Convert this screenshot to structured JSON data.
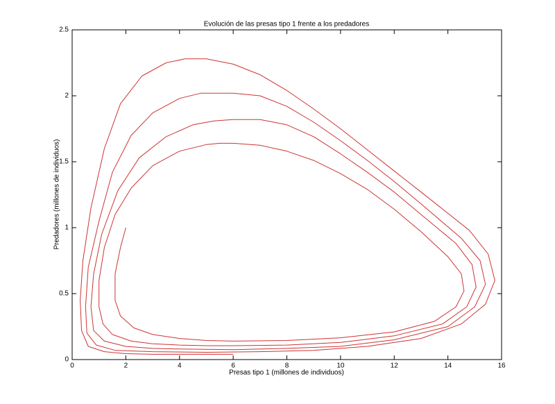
{
  "chart_data": {
    "type": "line",
    "title": "Evolución de las presas tipo 1 frente a los predadores",
    "xlabel": "Presas tipo 1 (millones de individuos)",
    "ylabel": "Predadores (millones de individuos)",
    "color": "#cc3333",
    "x": [
      2,
      1.8,
      1.6,
      1.6,
      1.8,
      2.3,
      3,
      4,
      5,
      6,
      8,
      10,
      12,
      13.5,
      14.3,
      14.6,
      14.5,
      14,
      13,
      12,
      11,
      10,
      9,
      8,
      7,
      6,
      5.5,
      5,
      4,
      3,
      2.2,
      1.6,
      1.2,
      1,
      1,
      1.15,
      1.5,
      2.2,
      3,
      4,
      5,
      6,
      8,
      10,
      12,
      13.8,
      14.7,
      15.05,
      14.9,
      14.3,
      13,
      12,
      11,
      10,
      9,
      8,
      7,
      6,
      5.3,
      4.5,
      3.5,
      2.5,
      1.7,
      1.1,
      0.8,
      0.7,
      0.8,
      1.2,
      2,
      3,
      4,
      6,
      8,
      10,
      12,
      14,
      15,
      15.4,
      15.2,
      14.5,
      13,
      12,
      11,
      10,
      9,
      8,
      7,
      6,
      4.8,
      4,
      3,
      2.2,
      1.5,
      1,
      0.6,
      0.5,
      0.55,
      0.9,
      1.6,
      3,
      5,
      7,
      9,
      11,
      13,
      14.5,
      15.4,
      15.75,
      15.5,
      14.8,
      13,
      12,
      11,
      10,
      9,
      8,
      7,
      6,
      5,
      4.2,
      3.5,
      2.6,
      1.8,
      1.2,
      0.7,
      0.4,
      0.3,
      0.35,
      0.6,
      1.2,
      2,
      3,
      4,
      5,
      6
    ],
    "values": [
      1,
      0.85,
      0.65,
      0.45,
      0.33,
      0.24,
      0.19,
      0.16,
      0.145,
      0.14,
      0.145,
      0.165,
      0.21,
      0.29,
      0.4,
      0.52,
      0.65,
      0.78,
      0.97,
      1.14,
      1.29,
      1.41,
      1.51,
      1.58,
      1.625,
      1.64,
      1.64,
      1.63,
      1.58,
      1.47,
      1.3,
      1.1,
      0.85,
      0.6,
      0.4,
      0.27,
      0.19,
      0.14,
      0.12,
      0.11,
      0.105,
      0.105,
      0.11,
      0.13,
      0.18,
      0.27,
      0.4,
      0.55,
      0.72,
      0.88,
      1.1,
      1.27,
      1.42,
      1.56,
      1.69,
      1.78,
      1.82,
      1.82,
      1.81,
      1.78,
      1.69,
      1.53,
      1.28,
      0.95,
      0.65,
      0.4,
      0.22,
      0.14,
      0.1,
      0.085,
      0.08,
      0.075,
      0.085,
      0.1,
      0.15,
      0.25,
      0.4,
      0.57,
      0.75,
      0.92,
      1.18,
      1.35,
      1.51,
      1.66,
      1.8,
      1.92,
      2,
      2.02,
      2.02,
      1.98,
      1.87,
      1.7,
      1.42,
      1.05,
      0.7,
      0.4,
      0.2,
      0.11,
      0.07,
      0.06,
      0.055,
      0.06,
      0.07,
      0.1,
      0.16,
      0.27,
      0.42,
      0.6,
      0.8,
      0.98,
      1.27,
      1.43,
      1.59,
      1.75,
      1.9,
      2.04,
      2.16,
      2.24,
      2.28,
      2.28,
      2.25,
      2.15,
      1.94,
      1.6,
      1.15,
      0.75,
      0.45,
      0.22,
      0.1,
      0.06,
      0.045,
      0.04,
      0.04,
      0.04,
      0.04
    ],
    "xlim": [
      0,
      16
    ],
    "xticks": [
      0,
      2,
      4,
      6,
      8,
      10,
      12,
      14,
      16
    ],
    "ylim": [
      0,
      2.5
    ],
    "yticks": [
      0,
      0.5,
      1,
      1.5,
      2,
      2.5
    ]
  }
}
